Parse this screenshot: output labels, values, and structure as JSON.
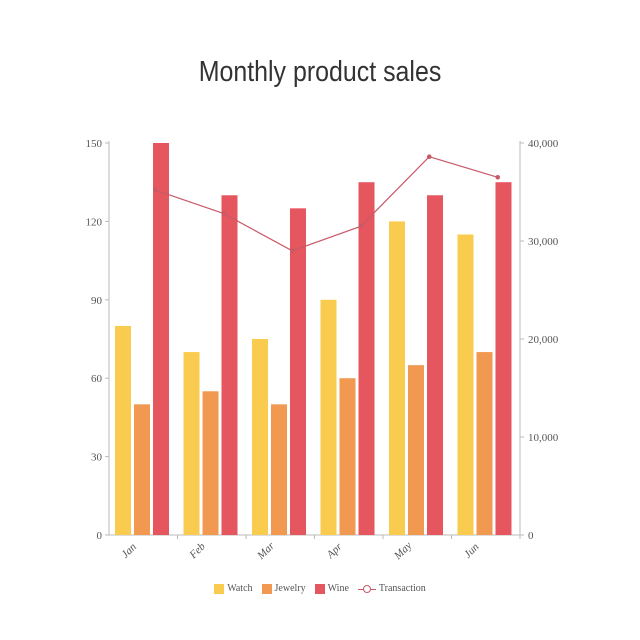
{
  "chart_data": {
    "type": "bar",
    "title": "Monthly product sales",
    "categories": [
      "Jan",
      "Feb",
      "Mar",
      "Apr",
      "May",
      "Jun"
    ],
    "series": [
      {
        "name": "Watch",
        "type": "bar",
        "axis": "left",
        "color": "#f9cb4f",
        "values": [
          80,
          70,
          75,
          90,
          120,
          115
        ]
      },
      {
        "name": "Jewelry",
        "type": "bar",
        "axis": "left",
        "color": "#f19950",
        "values": [
          50,
          55,
          50,
          60,
          65,
          70
        ]
      },
      {
        "name": "Wine",
        "type": "bar",
        "axis": "left",
        "color": "#e5565e",
        "values": [
          150,
          130,
          125,
          135,
          130,
          135
        ]
      },
      {
        "name": "Transaction",
        "type": "line",
        "axis": "right",
        "color": "#c85a68",
        "values": [
          35200,
          32800,
          29000,
          31500,
          38600,
          36500
        ]
      }
    ],
    "y_left": {
      "min": 0,
      "max": 150,
      "ticks": [
        "0",
        "30",
        "60",
        "90",
        "120",
        "150"
      ]
    },
    "y_right": {
      "min": 0,
      "max": 40000,
      "ticks": [
        "0",
        "10,000",
        "20,000",
        "30,000",
        "40,000"
      ]
    },
    "legend_position": "bottom-center",
    "grid": false
  }
}
